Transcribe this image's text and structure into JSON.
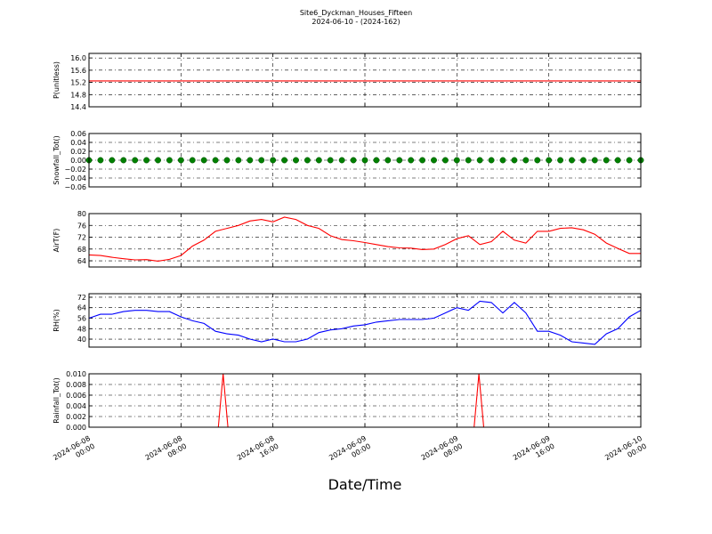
{
  "title": "Site6_Dyckman_Houses_Fifteen",
  "subtitle": "2024-06-10 - (2024-162)",
  "xlabel": "Date/Time",
  "xlim": [
    "2024-06-08 00:00",
    "2024-06-10 00:00"
  ],
  "xticks": [
    "2024-06-08 00:00",
    "2024-06-08 08:00",
    "2024-06-08 16:00",
    "2024-06-09 00:00",
    "2024-06-09 08:00",
    "2024-06-09 16:00",
    "2024-06-10 00:00"
  ],
  "x": [
    "2024-06-08 00:00",
    "2024-06-08 01:00",
    "2024-06-08 02:00",
    "2024-06-08 03:00",
    "2024-06-08 04:00",
    "2024-06-08 05:00",
    "2024-06-08 06:00",
    "2024-06-08 07:00",
    "2024-06-08 08:00",
    "2024-06-08 09:00",
    "2024-06-08 10:00",
    "2024-06-08 11:00",
    "2024-06-08 12:00",
    "2024-06-08 13:00",
    "2024-06-08 14:00",
    "2024-06-08 15:00",
    "2024-06-08 16:00",
    "2024-06-08 17:00",
    "2024-06-08 18:00",
    "2024-06-08 19:00",
    "2024-06-08 20:00",
    "2024-06-08 21:00",
    "2024-06-08 22:00",
    "2024-06-08 23:00",
    "2024-06-09 00:00",
    "2024-06-09 01:00",
    "2024-06-09 02:00",
    "2024-06-09 03:00",
    "2024-06-09 04:00",
    "2024-06-09 05:00",
    "2024-06-09 06:00",
    "2024-06-09 07:00",
    "2024-06-09 08:00",
    "2024-06-09 09:00",
    "2024-06-09 10:00",
    "2024-06-09 11:00",
    "2024-06-09 12:00",
    "2024-06-09 13:00",
    "2024-06-09 14:00",
    "2024-06-09 15:00",
    "2024-06-09 16:00",
    "2024-06-09 17:00",
    "2024-06-09 18:00",
    "2024-06-09 19:00",
    "2024-06-09 20:00",
    "2024-06-09 21:00",
    "2024-06-09 22:00",
    "2024-06-09 23:00",
    "2024-06-10 00:00"
  ],
  "chart_data": [
    {
      "type": "line",
      "ylabel": "P(unitless)",
      "color": "#ff0000",
      "x": [
        "2024-06-08 00:00",
        "2024-06-10 00:00"
      ],
      "values": [
        15.25,
        15.25
      ],
      "ylim": [
        14.4,
        16.15
      ],
      "yticks": [
        14.4,
        14.8,
        15.2,
        15.6,
        {
          "value": 16,
          "label": "16.0"
        }
      ],
      "grid": true
    },
    {
      "type": "scatter",
      "ylabel": "Snowfall_Tot()",
      "color": "#008000",
      "values": [
        0,
        0,
        0,
        0,
        0,
        0,
        0,
        0,
        0,
        0,
        0,
        0,
        0,
        0,
        0,
        0,
        0,
        0,
        0,
        0,
        0,
        0,
        0,
        0,
        0,
        0,
        0,
        0,
        0,
        0,
        0,
        0,
        0,
        0,
        0,
        0,
        0,
        0,
        0,
        0,
        0,
        0,
        0,
        0,
        0,
        0,
        0,
        0,
        0
      ],
      "ylim": [
        -0.06,
        0.06
      ],
      "yticks": [
        {
          "value": -0.06,
          "label": "−0.06"
        },
        {
          "value": -0.04,
          "label": "−0.04"
        },
        {
          "value": -0.02,
          "label": "−0.02"
        },
        {
          "value": 0,
          "label": "0.00"
        },
        0.02,
        0.04,
        0.06
      ],
      "grid": true
    },
    {
      "type": "line",
      "ylabel": "AirT(F)",
      "color": "#ff0000",
      "values": [
        66,
        65.8,
        65.2,
        64.7,
        64.3,
        64.4,
        63.9,
        64.5,
        65.8,
        69,
        71,
        74,
        75,
        76,
        77.5,
        78,
        77.2,
        78.8,
        78,
        76,
        75,
        72.5,
        71.2,
        70.8,
        70.2,
        69.5,
        68.8,
        68.4,
        68.3,
        67.8,
        68,
        69.5,
        71.5,
        72.5,
        69.5,
        70.5,
        74,
        71,
        70,
        74,
        74,
        75,
        75.2,
        74.5,
        73,
        70,
        68.2,
        66.5,
        66.5
      ],
      "ylim": [
        61.9,
        80
      ],
      "yticks": [
        64,
        68,
        72,
        76,
        80
      ],
      "grid": true
    },
    {
      "type": "line",
      "ylabel": "RH(%)",
      "color": "#0000ff",
      "values": [
        56,
        59,
        59,
        61,
        62,
        62,
        61,
        61,
        57,
        54,
        52,
        46,
        44,
        43,
        40,
        38,
        40,
        38,
        38,
        40,
        45,
        47,
        48,
        50,
        51,
        53,
        54,
        55,
        55,
        55,
        56,
        60,
        64,
        62,
        69,
        68,
        60,
        68,
        60,
        46,
        46,
        43,
        38,
        37,
        36,
        44,
        48,
        57,
        62
      ],
      "ylim": [
        33.9,
        74.7
      ],
      "yticks": [
        40,
        48,
        56,
        64,
        72
      ],
      "grid": true
    },
    {
      "type": "line",
      "ylabel": "Rainfall_Tot()",
      "color": "#ff0000",
      "x": [
        "2024-06-08 00:00",
        "2024-06-08 11:15",
        "2024-06-08 11:40",
        "2024-06-08 12:05",
        "2024-06-09 09:30",
        "2024-06-09 09:55",
        "2024-06-09 10:20",
        "2024-06-10 00:00"
      ],
      "values": [
        0,
        0,
        0.01,
        0,
        0,
        0.01,
        0,
        0
      ],
      "ylim": [
        0,
        0.01
      ],
      "yticks": [
        {
          "value": 0,
          "label": "0.000"
        },
        {
          "value": 0.002,
          "label": "0.002"
        },
        {
          "value": 0.004,
          "label": "0.004"
        },
        {
          "value": 0.006,
          "label": "0.006"
        },
        {
          "value": 0.008,
          "label": "0.008"
        },
        {
          "value": 0.01,
          "label": "0.010"
        }
      ],
      "grid": true
    }
  ]
}
